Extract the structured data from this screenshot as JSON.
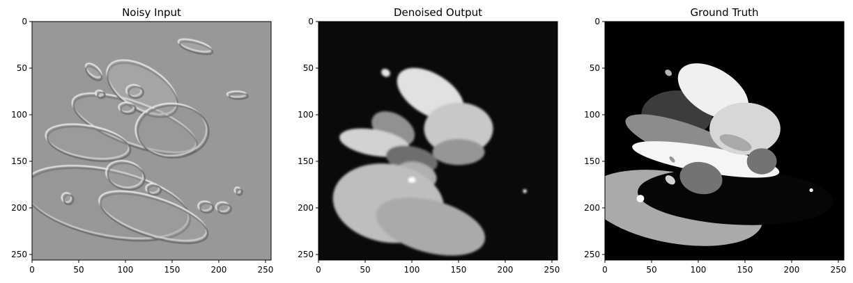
{
  "chart_data": [
    {
      "type": "heatmap",
      "title": "Noisy Input",
      "kind": "noisy",
      "xlim": [
        0,
        256
      ],
      "ylim": [
        256,
        0
      ],
      "xticks": [
        0,
        50,
        100,
        150,
        200,
        250
      ],
      "yticks": [
        0,
        50,
        100,
        150,
        200,
        250
      ],
      "colormap": "gray"
    },
    {
      "type": "heatmap",
      "title": "Denoised Output",
      "kind": "denoised",
      "xlim": [
        0,
        256
      ],
      "ylim": [
        256,
        0
      ],
      "xticks": [
        0,
        50,
        100,
        150,
        200,
        250
      ],
      "yticks": [
        0,
        50,
        100,
        150,
        200,
        250
      ],
      "colormap": "gray"
    },
    {
      "type": "heatmap",
      "title": "Ground Truth",
      "kind": "truth",
      "xlim": [
        0,
        256
      ],
      "ylim": [
        256,
        0
      ],
      "xticks": [
        0,
        50,
        100,
        150,
        200,
        250
      ],
      "yticks": [
        0,
        50,
        100,
        150,
        200,
        250
      ],
      "colormap": "gray"
    }
  ]
}
